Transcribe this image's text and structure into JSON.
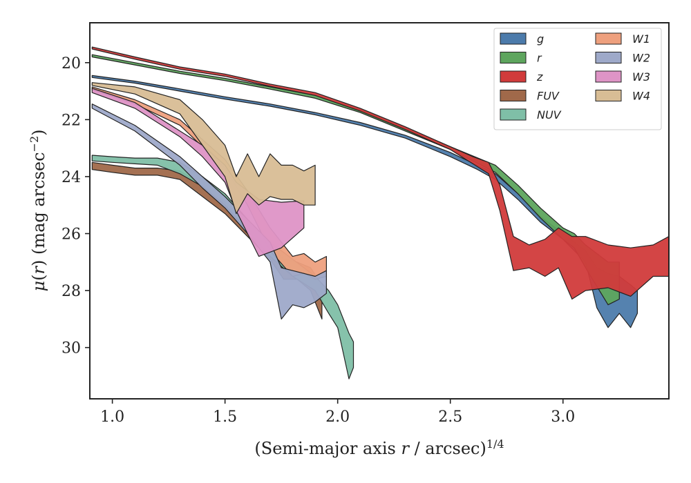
{
  "chart_data": {
    "type": "area",
    "xlabel": "(Semi-major axis r / arcsec)^{1/4}",
    "ylabel": "μ(r) (mag arcsec^{−2})",
    "xlim": [
      0.9,
      3.47
    ],
    "ylim": [
      31.8,
      18.6
    ],
    "y_inverted": true,
    "x_ticks": [
      1.0,
      1.5,
      2.0,
      2.5,
      3.0
    ],
    "x_tick_labels": [
      "1.0",
      "1.5",
      "2.0",
      "2.5",
      "3.0"
    ],
    "y_ticks": [
      20,
      22,
      24,
      26,
      28,
      30
    ],
    "y_tick_labels": [
      "20",
      "22",
      "24",
      "26",
      "28",
      "30"
    ],
    "grid": false,
    "legend_position": "top-right",
    "series": [
      {
        "name": "g",
        "color": "#4c7bab",
        "points": [
          [
            0.91,
            20.45,
            20.52
          ],
          [
            1.1,
            20.65,
            20.72
          ],
          [
            1.3,
            20.92,
            21.0
          ],
          [
            1.5,
            21.2,
            21.28
          ],
          [
            1.7,
            21.45,
            21.53
          ],
          [
            1.9,
            21.75,
            21.83
          ],
          [
            2.1,
            22.1,
            22.2
          ],
          [
            2.3,
            22.55,
            22.65
          ],
          [
            2.5,
            23.15,
            23.3
          ],
          [
            2.62,
            23.6,
            23.75
          ],
          [
            2.7,
            23.9,
            24.1
          ],
          [
            2.8,
            24.6,
            24.8
          ],
          [
            2.9,
            25.4,
            25.6
          ],
          [
            3.0,
            26.0,
            26.2
          ],
          [
            3.1,
            26.6,
            27.0
          ],
          [
            3.15,
            27.2,
            28.6
          ],
          [
            3.2,
            27.4,
            29.3
          ],
          [
            3.25,
            27.5,
            28.8
          ],
          [
            3.3,
            27.8,
            29.3
          ],
          [
            3.33,
            28.0,
            28.8
          ]
        ]
      },
      {
        "name": "r",
        "color": "#5ea55e",
        "points": [
          [
            0.91,
            19.72,
            19.8
          ],
          [
            1.1,
            20.0,
            20.08
          ],
          [
            1.3,
            20.3,
            20.38
          ],
          [
            1.5,
            20.55,
            20.63
          ],
          [
            1.7,
            20.85,
            20.93
          ],
          [
            1.9,
            21.15,
            21.25
          ],
          [
            2.1,
            21.65,
            21.75
          ],
          [
            2.3,
            22.3,
            22.4
          ],
          [
            2.5,
            22.95,
            23.05
          ],
          [
            2.7,
            23.6,
            23.85
          ],
          [
            2.8,
            24.3,
            24.6
          ],
          [
            2.9,
            25.1,
            25.45
          ],
          [
            3.0,
            25.8,
            26.2
          ],
          [
            3.05,
            26.0,
            26.5
          ],
          [
            3.1,
            26.4,
            27.2
          ],
          [
            3.2,
            27.0,
            28.5
          ],
          [
            3.25,
            27.0,
            28.3
          ]
        ]
      },
      {
        "name": "z",
        "color": "#d13b3b",
        "points": [
          [
            0.91,
            19.45,
            19.52
          ],
          [
            1.1,
            19.8,
            19.88
          ],
          [
            1.3,
            20.15,
            20.23
          ],
          [
            1.5,
            20.4,
            20.48
          ],
          [
            1.7,
            20.75,
            20.83
          ],
          [
            1.9,
            21.05,
            21.15
          ],
          [
            2.1,
            21.6,
            21.7
          ],
          [
            2.3,
            22.25,
            22.35
          ],
          [
            2.5,
            22.95,
            23.05
          ],
          [
            2.6,
            23.3,
            23.55
          ],
          [
            2.67,
            23.5,
            23.9
          ],
          [
            2.72,
            24.3,
            25.2
          ],
          [
            2.78,
            26.1,
            27.3
          ],
          [
            2.85,
            26.4,
            27.2
          ],
          [
            2.92,
            26.2,
            27.5
          ],
          [
            2.98,
            25.8,
            27.2
          ],
          [
            3.04,
            26.1,
            28.3
          ],
          [
            3.1,
            26.1,
            28.0
          ],
          [
            3.2,
            26.4,
            27.9
          ],
          [
            3.3,
            26.5,
            28.2
          ],
          [
            3.4,
            26.4,
            27.5
          ],
          [
            3.47,
            26.1,
            27.5
          ]
        ]
      },
      {
        "name": "FUV",
        "color": "#a0694a",
        "points": [
          [
            0.91,
            23.5,
            23.75
          ],
          [
            1.0,
            23.6,
            23.85
          ],
          [
            1.1,
            23.7,
            23.95
          ],
          [
            1.2,
            23.7,
            23.95
          ],
          [
            1.3,
            23.8,
            24.1
          ],
          [
            1.4,
            24.3,
            24.7
          ],
          [
            1.5,
            24.9,
            25.3
          ],
          [
            1.6,
            25.7,
            26.1
          ],
          [
            1.7,
            26.4,
            26.9
          ],
          [
            1.76,
            26.9,
            27.6
          ],
          [
            1.82,
            27.0,
            27.6
          ],
          [
            1.88,
            27.2,
            28.0
          ],
          [
            1.93,
            27.8,
            29.0
          ]
        ]
      },
      {
        "name": "NUV",
        "color": "#7fbfa7",
        "points": [
          [
            0.91,
            23.25,
            23.45
          ],
          [
            1.0,
            23.3,
            23.5
          ],
          [
            1.1,
            23.35,
            23.55
          ],
          [
            1.2,
            23.35,
            23.6
          ],
          [
            1.3,
            23.5,
            23.9
          ],
          [
            1.4,
            24.0,
            24.35
          ],
          [
            1.5,
            24.6,
            25.0
          ],
          [
            1.6,
            25.5,
            25.9
          ],
          [
            1.7,
            26.3,
            26.8
          ],
          [
            1.8,
            26.9,
            27.5
          ],
          [
            1.9,
            27.5,
            28.0
          ],
          [
            1.96,
            28.0,
            28.8
          ],
          [
            2.0,
            28.5,
            29.3
          ],
          [
            2.05,
            29.5,
            31.1
          ],
          [
            2.07,
            29.8,
            30.7
          ]
        ]
      },
      {
        "name": "W1",
        "color": "#eea07e",
        "points": [
          [
            0.91,
            20.85,
            20.95
          ],
          [
            1.1,
            21.3,
            21.45
          ],
          [
            1.3,
            22.0,
            22.2
          ],
          [
            1.5,
            23.4,
            23.7
          ],
          [
            1.6,
            24.5,
            25.0
          ],
          [
            1.7,
            25.8,
            26.6
          ],
          [
            1.8,
            26.8,
            27.5
          ],
          [
            1.85,
            26.7,
            27.4
          ],
          [
            1.9,
            27.0,
            27.6
          ],
          [
            1.95,
            26.8,
            27.5
          ]
        ]
      },
      {
        "name": "W2",
        "color": "#9ea9c9",
        "points": [
          [
            0.91,
            21.45,
            21.6
          ],
          [
            1.1,
            22.2,
            22.4
          ],
          [
            1.3,
            23.3,
            23.6
          ],
          [
            1.4,
            24.0,
            24.4
          ],
          [
            1.5,
            24.7,
            25.1
          ],
          [
            1.6,
            25.5,
            26.0
          ],
          [
            1.7,
            26.3,
            27.0
          ],
          [
            1.75,
            27.2,
            29.0
          ],
          [
            1.8,
            27.3,
            28.5
          ],
          [
            1.85,
            27.4,
            28.6
          ],
          [
            1.9,
            27.5,
            28.4
          ],
          [
            1.95,
            27.3,
            28.1
          ]
        ]
      },
      {
        "name": "W3",
        "color": "#de94c6",
        "points": [
          [
            0.91,
            20.9,
            21.05
          ],
          [
            1.1,
            21.4,
            21.6
          ],
          [
            1.3,
            22.4,
            22.6
          ],
          [
            1.4,
            22.9,
            23.3
          ],
          [
            1.5,
            23.6,
            24.2
          ],
          [
            1.55,
            24.2,
            25.2
          ],
          [
            1.65,
            24.8,
            26.8
          ],
          [
            1.75,
            24.9,
            26.5
          ],
          [
            1.85,
            24.85,
            25.8
          ]
        ]
      },
      {
        "name": "W4",
        "color": "#d8bd95",
        "points": [
          [
            0.91,
            20.7,
            20.8
          ],
          [
            1.1,
            20.85,
            21.1
          ],
          [
            1.3,
            21.3,
            21.8
          ],
          [
            1.4,
            22.0,
            22.9
          ],
          [
            1.5,
            22.9,
            24.0
          ],
          [
            1.55,
            24.0,
            25.3
          ],
          [
            1.6,
            23.2,
            24.6
          ],
          [
            1.65,
            24.0,
            25.0
          ],
          [
            1.7,
            23.2,
            24.7
          ],
          [
            1.75,
            23.6,
            24.8
          ],
          [
            1.8,
            23.6,
            24.8
          ],
          [
            1.85,
            23.8,
            25.0
          ],
          [
            1.9,
            23.6,
            25.0
          ]
        ]
      }
    ]
  }
}
